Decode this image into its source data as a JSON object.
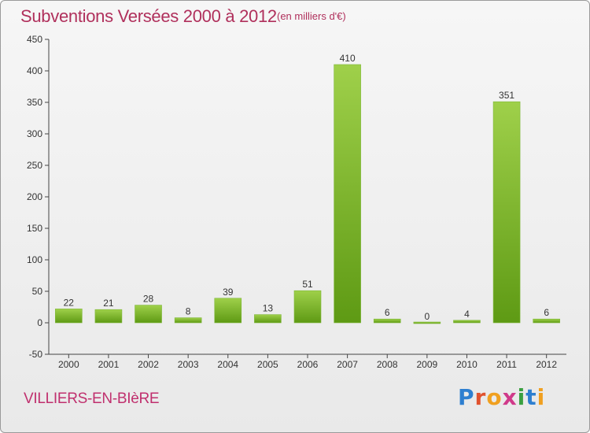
{
  "title": "Subventions Versées 2000 à 2012",
  "unit_note": "(en milliers d'€)",
  "commune": "VILLIERS-EN-BIèRE",
  "logo": {
    "text": [
      "P",
      "r",
      "o",
      "x",
      "i",
      "t",
      "i"
    ]
  },
  "colors": {
    "title": "#b0305c",
    "bar_light": "#9fd04a",
    "bar_dark": "#5e9a14",
    "axis": "#444444"
  },
  "chart_data": {
    "type": "bar",
    "title": "Subventions Versées 2000 à 2012",
    "xlabel": "",
    "ylabel": "",
    "categories": [
      "2000",
      "2001",
      "2002",
      "2003",
      "2004",
      "2005",
      "2006",
      "2007",
      "2008",
      "2009",
      "2010",
      "2011",
      "2012"
    ],
    "values": [
      22,
      21,
      28,
      8,
      39,
      13,
      51,
      410,
      6,
      0,
      4,
      351,
      6
    ],
    "ylim": [
      -50,
      450
    ],
    "yticks": [
      -50,
      0,
      50,
      100,
      150,
      200,
      250,
      300,
      350,
      400,
      450
    ],
    "grid": false,
    "legend": "none"
  }
}
